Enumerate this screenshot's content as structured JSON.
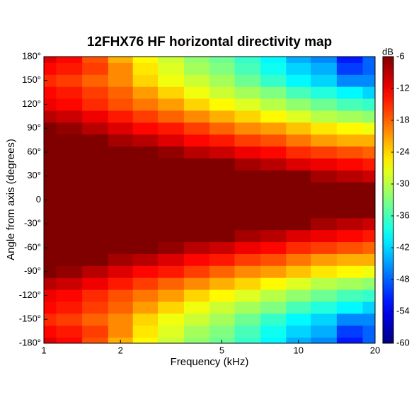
{
  "chart_data": {
    "type": "heatmap",
    "title": "12FHX76 HF horizontal directivity map",
    "xlabel": "Frequency (kHz)",
    "ylabel": "Angle from axis (degrees)",
    "colorbar_label": "dB",
    "xscale": "log",
    "xlim": [
      1,
      20
    ],
    "xticks": [
      1,
      2,
      5,
      10,
      20
    ],
    "ylim": [
      -180,
      180
    ],
    "yticks": [
      {
        "value": -180,
        "label": "-180°"
      },
      {
        "value": -150,
        "label": "-150°"
      },
      {
        "value": -120,
        "label": "-120°"
      },
      {
        "value": -90,
        "label": "-90°"
      },
      {
        "value": -60,
        "label": "-60°"
      },
      {
        "value": -30,
        "label": "-30°"
      },
      0,
      {
        "value": 30,
        "label": "30°"
      },
      {
        "value": 60,
        "label": "60°"
      },
      {
        "value": 90,
        "label": "90°"
      },
      {
        "value": 120,
        "label": "120°"
      },
      {
        "value": 150,
        "label": "150°"
      },
      {
        "value": 180,
        "label": "180°"
      }
    ],
    "clim": [
      -60,
      -6
    ],
    "cticks": [
      -60,
      -54,
      -48,
      -42,
      -36,
      -30,
      -24,
      -18,
      -12,
      -6
    ],
    "x": [
      1,
      1.25,
      1.6,
      2,
      2.5,
      3.15,
      4,
      5,
      6.3,
      8,
      10,
      12.5,
      16,
      20
    ],
    "y": [
      -180,
      -165,
      -150,
      -135,
      -120,
      -105,
      -90,
      -75,
      -60,
      -45,
      -30,
      -15,
      0,
      15,
      30,
      45,
      60,
      75,
      90,
      105,
      120,
      135,
      150,
      165,
      180
    ],
    "z": [
      [
        -11,
        -13,
        -17,
        -22,
        -26,
        -29,
        -32,
        -34,
        -37,
        -40,
        -44,
        -46,
        -52,
        -48
      ],
      [
        -13,
        -14,
        -16,
        -20,
        -25,
        -28,
        -31,
        -33,
        -36,
        -39,
        -42,
        -44,
        -50,
        -48
      ],
      [
        -15,
        -16,
        -18,
        -20,
        -24,
        -27,
        -29,
        -31,
        -34,
        -37,
        -40,
        -42,
        -46,
        -46
      ],
      [
        -13,
        -14,
        -16,
        -18,
        -21,
        -24,
        -27,
        -29,
        -31,
        -33,
        -36,
        -38,
        -40,
        -42
      ],
      [
        -12,
        -13,
        -15,
        -17,
        -19,
        -21,
        -24,
        -26,
        -28,
        -30,
        -32,
        -34,
        -36,
        -37
      ],
      [
        -9,
        -10,
        -12,
        -14,
        -16,
        -18,
        -20,
        -22,
        -24,
        -26,
        -28,
        -30,
        -31,
        -32
      ],
      [
        -5,
        -7,
        -9,
        -11,
        -13,
        -14,
        -16,
        -18,
        -20,
        -21,
        -23,
        -25,
        -26,
        -27
      ],
      [
        -3,
        -4,
        -6,
        -8,
        -9,
        -11,
        -13,
        -14,
        -16,
        -17,
        -19,
        -21,
        -22,
        -22
      ],
      [
        -2,
        -2,
        -3,
        -5,
        -6,
        -7,
        -9,
        -10,
        -12,
        -13,
        -15,
        -16,
        -17,
        -18
      ],
      [
        -1,
        -1,
        -2,
        -3,
        -3,
        -4,
        -5,
        -6,
        -8,
        -9,
        -11,
        -12,
        -13,
        -14
      ],
      [
        0,
        0,
        -1,
        -1,
        -1,
        -2,
        -2,
        -3,
        -4,
        -5,
        -6,
        -8,
        -9,
        -10
      ],
      [
        0,
        0,
        0,
        0,
        0,
        0,
        0,
        0,
        -1,
        -1,
        -2,
        -3,
        -3,
        -5
      ],
      [
        0,
        0,
        0,
        0,
        0,
        0,
        0,
        0,
        0,
        0,
        0,
        0,
        0,
        0
      ],
      [
        0,
        0,
        0,
        0,
        0,
        0,
        0,
        0,
        -1,
        -1,
        -2,
        -3,
        -3,
        -5
      ],
      [
        0,
        0,
        -1,
        -1,
        -1,
        -2,
        -2,
        -3,
        -4,
        -5,
        -6,
        -8,
        -9,
        -10
      ],
      [
        -1,
        -1,
        -2,
        -3,
        -3,
        -4,
        -5,
        -6,
        -8,
        -9,
        -11,
        -12,
        -13,
        -14
      ],
      [
        -2,
        -2,
        -3,
        -5,
        -6,
        -7,
        -9,
        -10,
        -12,
        -13,
        -15,
        -16,
        -17,
        -18
      ],
      [
        -3,
        -4,
        -6,
        -8,
        -9,
        -11,
        -13,
        -14,
        -16,
        -17,
        -19,
        -21,
        -22,
        -22
      ],
      [
        -5,
        -7,
        -9,
        -11,
        -13,
        -14,
        -16,
        -18,
        -20,
        -21,
        -23,
        -25,
        -26,
        -27
      ],
      [
        -9,
        -10,
        -12,
        -14,
        -16,
        -18,
        -20,
        -22,
        -24,
        -26,
        -28,
        -30,
        -31,
        -32
      ],
      [
        -12,
        -13,
        -15,
        -17,
        -19,
        -21,
        -24,
        -26,
        -28,
        -30,
        -32,
        -34,
        -36,
        -37
      ],
      [
        -13,
        -14,
        -16,
        -18,
        -21,
        -24,
        -27,
        -29,
        -31,
        -33,
        -36,
        -38,
        -40,
        -42
      ],
      [
        -15,
        -16,
        -18,
        -20,
        -24,
        -27,
        -29,
        -31,
        -34,
        -37,
        -40,
        -42,
        -46,
        -46
      ],
      [
        -13,
        -14,
        -16,
        -20,
        -25,
        -28,
        -31,
        -33,
        -36,
        -39,
        -42,
        -44,
        -50,
        -48
      ],
      [
        -11,
        -13,
        -17,
        -22,
        -26,
        -29,
        -32,
        -34,
        -37,
        -40,
        -44,
        -46,
        -52,
        -48
      ]
    ]
  }
}
